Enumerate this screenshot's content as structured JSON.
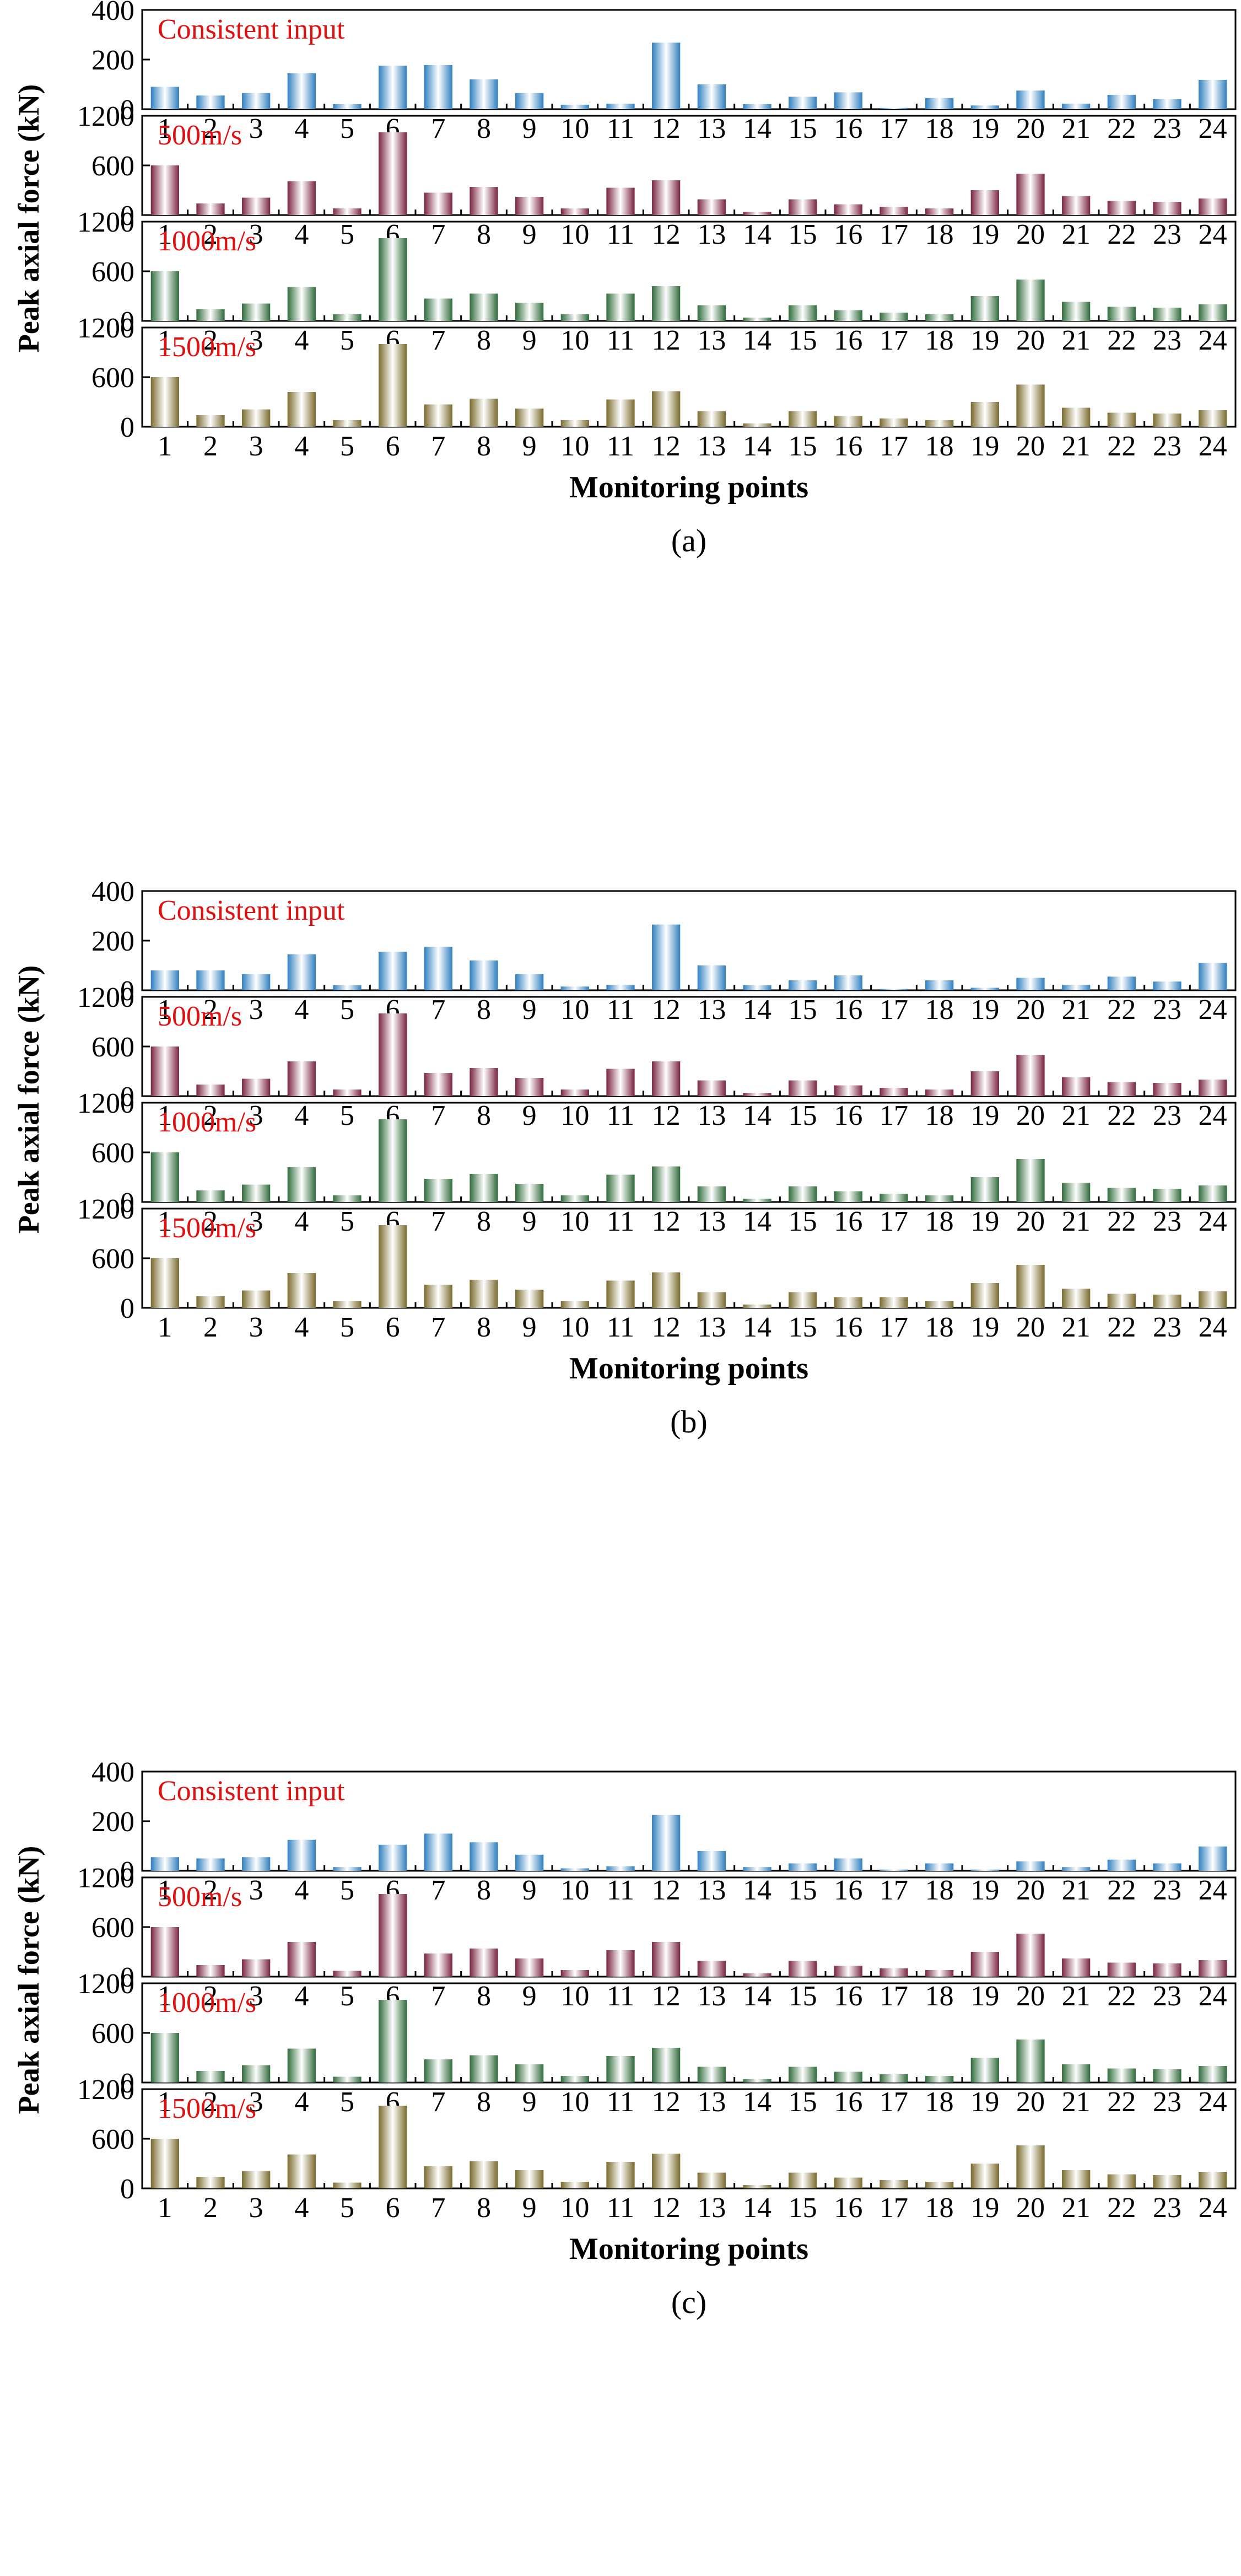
{
  "figure": {
    "colors": {
      "consistent": "#2f7fbf",
      "v500": "#7a2440",
      "v1000": "#2f6b3a",
      "v1500": "#7a6a2c",
      "label_text": "#e01010",
      "axis": "#000000"
    }
  },
  "chart_data": [
    {
      "type": "bar",
      "panel_caption": "(a)",
      "ylabel": "Peak axial force (kN)",
      "xlabel": "Monitoring points",
      "categories": [
        "1",
        "2",
        "3",
        "4",
        "5",
        "6",
        "7",
        "8",
        "9",
        "10",
        "11",
        "12",
        "13",
        "14",
        "15",
        "16",
        "17",
        "18",
        "19",
        "20",
        "21",
        "22",
        "23",
        "24"
      ],
      "series": [
        {
          "name": "Consistent input",
          "color_key": "consistent",
          "ylim": [
            0,
            400
          ],
          "yticks": [
            0,
            200,
            400
          ],
          "values": [
            90,
            55,
            65,
            145,
            20,
            175,
            178,
            120,
            65,
            18,
            22,
            268,
            100,
            20,
            50,
            68,
            5,
            45,
            15,
            75,
            22,
            58,
            40,
            118
          ]
        },
        {
          "name": "500m/s",
          "color_key": "v500",
          "ylim": [
            0,
            1200
          ],
          "yticks": [
            0,
            600,
            1200
          ],
          "values": [
            600,
            140,
            210,
            410,
            80,
            1000,
            270,
            340,
            220,
            80,
            330,
            420,
            190,
            40,
            190,
            130,
            100,
            80,
            300,
            500,
            230,
            170,
            160,
            200
          ]
        },
        {
          "name": "1000m/s",
          "color_key": "v1000",
          "ylim": [
            0,
            1200
          ],
          "yticks": [
            0,
            600,
            1200
          ],
          "values": [
            600,
            140,
            210,
            410,
            80,
            1000,
            270,
            330,
            220,
            80,
            330,
            420,
            190,
            40,
            190,
            130,
            100,
            80,
            300,
            500,
            230,
            170,
            160,
            200
          ]
        },
        {
          "name": "1500m/s",
          "color_key": "v1500",
          "ylim": [
            0,
            1200
          ],
          "yticks": [
            0,
            600,
            1200
          ],
          "values": [
            600,
            140,
            210,
            420,
            80,
            1000,
            270,
            340,
            220,
            80,
            330,
            430,
            190,
            40,
            190,
            130,
            100,
            80,
            300,
            510,
            230,
            170,
            160,
            200
          ]
        }
      ]
    },
    {
      "type": "bar",
      "panel_caption": "(b)",
      "ylabel": "Peak axial force (kN)",
      "xlabel": "Monitoring points",
      "categories": [
        "1",
        "2",
        "3",
        "4",
        "5",
        "6",
        "7",
        "8",
        "9",
        "10",
        "11",
        "12",
        "13",
        "14",
        "15",
        "16",
        "17",
        "18",
        "19",
        "20",
        "21",
        "22",
        "23",
        "24"
      ],
      "series": [
        {
          "name": "Consistent input",
          "color_key": "consistent",
          "ylim": [
            0,
            400
          ],
          "yticks": [
            0,
            200,
            400
          ],
          "values": [
            80,
            80,
            65,
            145,
            20,
            155,
            175,
            120,
            65,
            15,
            22,
            265,
            100,
            20,
            40,
            60,
            5,
            40,
            10,
            50,
            22,
            55,
            35,
            110
          ]
        },
        {
          "name": "500m/s",
          "color_key": "v500",
          "ylim": [
            0,
            1200
          ],
          "yticks": [
            0,
            600,
            1200
          ],
          "values": [
            600,
            140,
            210,
            420,
            80,
            1000,
            280,
            340,
            220,
            80,
            330,
            420,
            190,
            40,
            190,
            130,
            100,
            80,
            300,
            500,
            230,
            170,
            160,
            200
          ]
        },
        {
          "name": "1000m/s",
          "color_key": "v1000",
          "ylim": [
            0,
            1200
          ],
          "yticks": [
            0,
            600,
            1200
          ],
          "values": [
            600,
            140,
            210,
            420,
            80,
            1000,
            280,
            340,
            220,
            80,
            330,
            430,
            190,
            40,
            190,
            130,
            100,
            80,
            300,
            520,
            230,
            170,
            160,
            200
          ]
        },
        {
          "name": "1500m/s",
          "color_key": "v1500",
          "ylim": [
            0,
            1200
          ],
          "yticks": [
            0,
            600,
            1200
          ],
          "values": [
            600,
            140,
            210,
            420,
            80,
            1000,
            280,
            340,
            220,
            80,
            330,
            430,
            190,
            40,
            190,
            130,
            130,
            80,
            300,
            520,
            230,
            170,
            160,
            200
          ]
        }
      ]
    },
    {
      "type": "bar",
      "panel_caption": "(c)",
      "ylabel": "Peak axial force (kN)",
      "xlabel": "Monitoring points",
      "categories": [
        "1",
        "2",
        "3",
        "4",
        "5",
        "6",
        "7",
        "8",
        "9",
        "10",
        "11",
        "12",
        "13",
        "14",
        "15",
        "16",
        "17",
        "18",
        "19",
        "20",
        "21",
        "22",
        "23",
        "24"
      ],
      "series": [
        {
          "name": "Consistent input",
          "color_key": "consistent",
          "ylim": [
            0,
            400
          ],
          "yticks": [
            0,
            200,
            400
          ],
          "values": [
            55,
            50,
            55,
            125,
            15,
            105,
            150,
            115,
            65,
            10,
            18,
            225,
            80,
            15,
            30,
            50,
            5,
            30,
            5,
            38,
            15,
            45,
            30,
            98
          ]
        },
        {
          "name": "500m/s",
          "color_key": "v500",
          "ylim": [
            0,
            1200
          ],
          "yticks": [
            0,
            600,
            1200
          ],
          "values": [
            600,
            140,
            210,
            420,
            70,
            1000,
            280,
            340,
            220,
            80,
            320,
            420,
            190,
            40,
            190,
            130,
            100,
            80,
            300,
            520,
            220,
            170,
            160,
            200
          ]
        },
        {
          "name": "1000m/s",
          "color_key": "v1000",
          "ylim": [
            0,
            1200
          ],
          "yticks": [
            0,
            600,
            1200
          ],
          "values": [
            600,
            140,
            210,
            410,
            70,
            1000,
            280,
            330,
            220,
            80,
            320,
            420,
            190,
            40,
            190,
            130,
            100,
            80,
            300,
            520,
            220,
            170,
            160,
            200
          ]
        },
        {
          "name": "1500m/s",
          "color_key": "v1500",
          "ylim": [
            0,
            1200
          ],
          "yticks": [
            0,
            600,
            1200
          ],
          "values": [
            600,
            140,
            210,
            410,
            70,
            1000,
            270,
            330,
            220,
            80,
            320,
            420,
            190,
            40,
            190,
            130,
            100,
            80,
            300,
            520,
            220,
            170,
            160,
            200
          ]
        }
      ]
    }
  ]
}
